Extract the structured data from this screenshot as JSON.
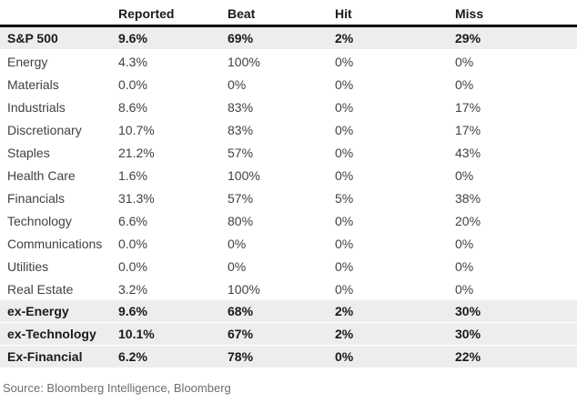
{
  "colors": {
    "highlight_bg": "#ededed",
    "header_rule": "#000000",
    "text_bold": "#1a1a1a",
    "text_regular": "#414141",
    "source_text": "#6e6e6e"
  },
  "chart_data": {
    "type": "table",
    "columns": [
      "",
      "Reported",
      "Beat",
      "Hit",
      "Miss"
    ],
    "rows": [
      {
        "label": "S&P 500",
        "values": [
          "9.6%",
          "69%",
          "2%",
          "29%"
        ],
        "highlight": true
      },
      {
        "label": "Energy",
        "values": [
          "4.3%",
          "100%",
          "0%",
          "0%"
        ],
        "highlight": false
      },
      {
        "label": "Materials",
        "values": [
          "0.0%",
          "0%",
          "0%",
          "0%"
        ],
        "highlight": false
      },
      {
        "label": "Industrials",
        "values": [
          "8.6%",
          "83%",
          "0%",
          "17%"
        ],
        "highlight": false
      },
      {
        "label": "Discretionary",
        "values": [
          "10.7%",
          "83%",
          "0%",
          "17%"
        ],
        "highlight": false
      },
      {
        "label": "Staples",
        "values": [
          "21.2%",
          "57%",
          "0%",
          "43%"
        ],
        "highlight": false
      },
      {
        "label": "Health Care",
        "values": [
          "1.6%",
          "100%",
          "0%",
          "0%"
        ],
        "highlight": false
      },
      {
        "label": "Financials",
        "values": [
          "31.3%",
          "57%",
          "5%",
          "38%"
        ],
        "highlight": false
      },
      {
        "label": "Technology",
        "values": [
          "6.6%",
          "80%",
          "0%",
          "20%"
        ],
        "highlight": false
      },
      {
        "label": "Communications",
        "values": [
          "0.0%",
          "0%",
          "0%",
          "0%"
        ],
        "highlight": false
      },
      {
        "label": "Utilities",
        "values": [
          "0.0%",
          "0%",
          "0%",
          "0%"
        ],
        "highlight": false
      },
      {
        "label": "Real Estate",
        "values": [
          "3.2%",
          "100%",
          "0%",
          "0%"
        ],
        "highlight": false
      },
      {
        "label": "ex-Energy",
        "values": [
          "9.6%",
          "68%",
          "2%",
          "30%"
        ],
        "highlight": true
      },
      {
        "label": "ex-Technology",
        "values": [
          "10.1%",
          "67%",
          "2%",
          "30%"
        ],
        "highlight": true
      },
      {
        "label": "Ex-Financial",
        "values": [
          "6.2%",
          "78%",
          "0%",
          "22%"
        ],
        "highlight": true
      }
    ],
    "source": "Source: Bloomberg Intelligence, Bloomberg",
    "layout": {
      "grid": "off",
      "header_rule": "thick-black",
      "highlight_rows": [
        0,
        12,
        13,
        14
      ]
    }
  }
}
